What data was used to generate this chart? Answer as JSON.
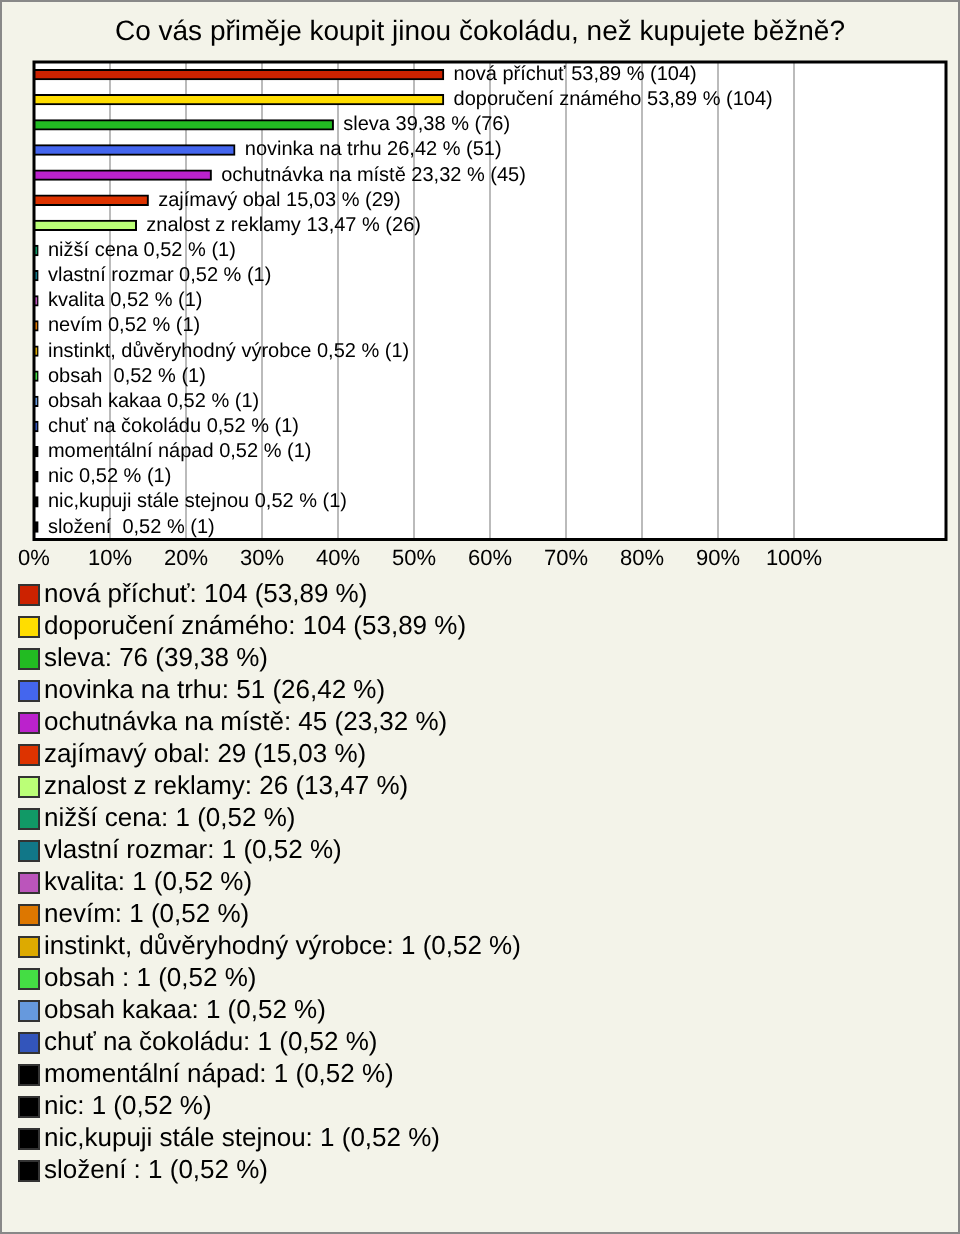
{
  "chart_data": {
    "type": "bar",
    "orientation": "horizontal",
    "title": "Co vás přiměje koupit jinou čokoládu, než kupujete běžně?",
    "categories": [
      "nová příchuť",
      "doporučení známého",
      "sleva",
      "novinka na trhu",
      "ochutnávka na místě",
      "zajímavý obal",
      "znalost z reklamy",
      "nižší cena",
      "vlastní rozmar",
      "kvalita",
      "nevím",
      "instinkt, důvěryhodný výrobce",
      "obsah ",
      "obsah kakaa",
      "chuť na čokoládu",
      "momentální nápad",
      "nic",
      "nic,kupuji stále stejnou",
      "složení "
    ],
    "values": [
      53.89,
      53.89,
      39.38,
      26.42,
      23.32,
      15.03,
      13.47,
      0.52,
      0.52,
      0.52,
      0.52,
      0.52,
      0.52,
      0.52,
      0.52,
      0.52,
      0.52,
      0.52,
      0.52
    ],
    "colors": [
      "#cc2200",
      "#ffdd00",
      "#22bb22",
      "#4466ee",
      "#bb22cc",
      "#dd3300",
      "#bbff77",
      "#119966",
      "#117788",
      "#bb55bb",
      "#dd7700",
      "#ddaa00",
      "#44dd44",
      "#6699dd",
      "#3355bb",
      "#000000",
      "#000000",
      "#000000",
      "#000000"
    ],
    "value_labels": [
      "53,89 % (104)",
      "53,89 % (104)",
      "39,38 % (76)",
      "26,42 % (51)",
      "23,32 % (45)",
      "15,03 % (29)",
      "13,47 % (26)",
      "0,52 % (1)",
      "0,52 % (1)",
      "0,52 % (1)",
      "0,52 % (1)",
      "0,52 % (1)",
      "0,52 % (1)",
      "0,52 % (1)",
      "0,52 % (1)",
      "0,52 % (1)",
      "0,52 % (1)",
      "0,52 % (1)",
      "0,52 % (1)"
    ],
    "annotations": [
      "nová příchuť: 104 (53,89 %)",
      "doporučení známého: 104 (53,89 %)",
      "sleva: 76 (39,38 %)",
      "novinka na trhu: 51 (26,42 %)",
      "ochutnávka na místě: 45 (23,32 %)",
      "zajímavý obal: 29 (15,03 %)",
      "znalost z reklamy: 26 (13,47 %)",
      "nižší cena: 1 (0,52 %)",
      "vlastní rozmar: 1 (0,52 %)",
      "kvalita: 1 (0,52 %)",
      "nevím: 1 (0,52 %)",
      "instinkt, důvěryhodný výrobce: 1 (0,52 %)",
      "obsah : 1 (0,52 %)",
      "obsah kakaa: 1 (0,52 %)",
      "chuť na čokoládu: 1 (0,52 %)",
      "momentální nápad: 1 (0,52 %)",
      "nic: 1 (0,52 %)",
      "nic,kupuji stále stejnou: 1 (0,52 %)",
      "složení : 1 (0,52 %)"
    ],
    "xlim": [
      0,
      120
    ],
    "xticks": [
      {
        "value": 0,
        "label": "0%"
      },
      {
        "value": 10,
        "label": "10%"
      },
      {
        "value": 20,
        "label": "20%"
      },
      {
        "value": 30,
        "label": "30%"
      },
      {
        "value": 40,
        "label": "40%"
      },
      {
        "value": 50,
        "label": "50%"
      },
      {
        "value": 60,
        "label": "60%"
      },
      {
        "value": 70,
        "label": "70%"
      },
      {
        "value": 80,
        "label": "80%"
      },
      {
        "value": 90,
        "label": "90%"
      },
      {
        "value": 100,
        "label": "100%"
      }
    ],
    "grid": "x",
    "tick_labels": "x"
  }
}
